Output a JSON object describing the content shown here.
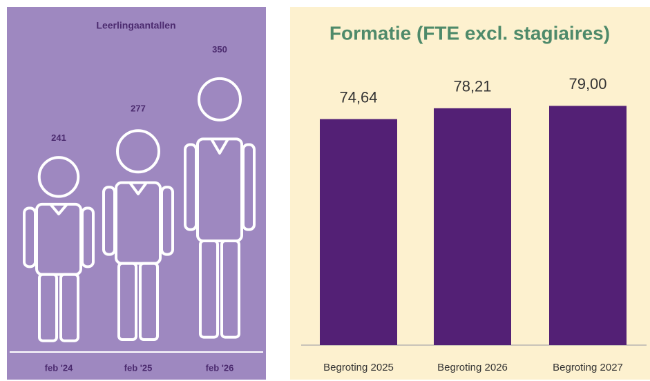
{
  "chart_data": [
    {
      "type": "pictograph",
      "title": "Leerlingaantallen",
      "categories": [
        "feb '24",
        "feb '25",
        "feb '26"
      ],
      "values": [
        241,
        277,
        350
      ],
      "ylim": [
        0,
        400
      ],
      "color": "#ffffff"
    },
    {
      "type": "bar",
      "title": "Formatie (FTE excl. stagiaires)",
      "categories": [
        "Begroting 2025",
        "Begroting 2026",
        "Begroting 2027"
      ],
      "values": [
        74.64,
        78.21,
        79.0
      ],
      "value_labels": [
        "74,64",
        "78,21",
        "79,00"
      ],
      "ylim": [
        0,
        80
      ],
      "color": "#532075"
    }
  ]
}
